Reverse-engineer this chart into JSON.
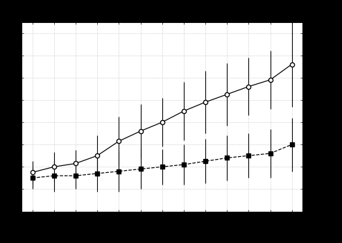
{
  "surveys": [
    1,
    2,
    3,
    4,
    5,
    6,
    7,
    8,
    9,
    10,
    11,
    12,
    13
  ],
  "thin_overlay_mean": [
    75,
    80,
    83,
    90,
    103,
    112,
    120,
    130,
    138,
    145,
    152,
    158,
    172
  ],
  "thin_overlay_std": [
    10,
    13,
    12,
    18,
    22,
    24,
    22,
    26,
    28,
    28,
    26,
    26,
    38
  ],
  "thick_overlay_mean": [
    70,
    72,
    72,
    74,
    76,
    78,
    80,
    82,
    85,
    88,
    90,
    92,
    100
  ],
  "thick_overlay_std": [
    10,
    14,
    12,
    16,
    18,
    18,
    16,
    18,
    20,
    20,
    20,
    22,
    24
  ],
  "ylim": [
    40,
    210
  ],
  "xlim": [
    0.5,
    13.5
  ],
  "bg_color": "#ffffff",
  "fig_bg": "#000000",
  "grid_color": "#bbbbbb"
}
